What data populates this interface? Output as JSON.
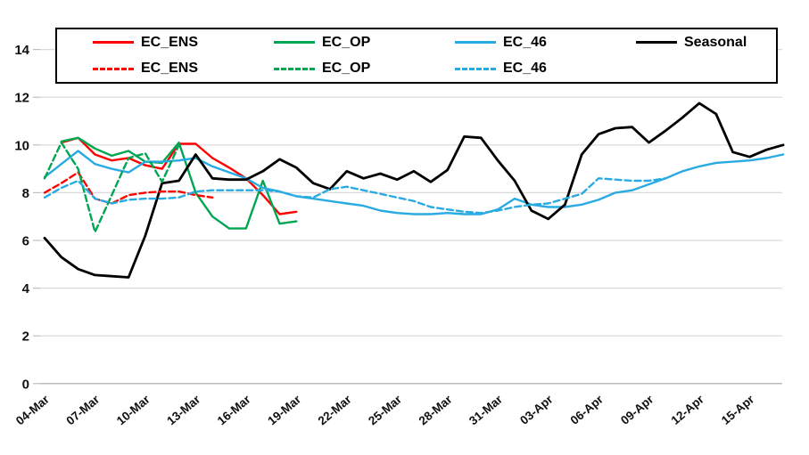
{
  "chart_data": {
    "type": "line",
    "title": "",
    "xlabel": "",
    "ylabel": "",
    "ylim": [
      0,
      14
    ],
    "y_ticks": [
      0,
      2,
      4,
      6,
      8,
      10,
      12,
      14
    ],
    "x_tick_labels": [
      "04-Mar",
      "07-Mar",
      "10-Mar",
      "13-Mar",
      "16-Mar",
      "19-Mar",
      "22-Mar",
      "25-Mar",
      "28-Mar",
      "31-Mar",
      "03-Apr",
      "06-Apr",
      "09-Apr",
      "12-Apr",
      "15-Apr"
    ],
    "x_tick_interval_days": 3,
    "grid": "horizontal-only",
    "legend_position": "top",
    "colors": {
      "red": "#FE0000",
      "green": "#00A651",
      "blue": "#29ABE2",
      "black": "#000000",
      "gridline": "#D9D9D9",
      "axis": "#A6A6A6",
      "tick_stub": "#BFBFBF"
    },
    "series": [
      {
        "name": "EC_ENS",
        "style": "solid",
        "color": "#FE0000",
        "start_day": 1,
        "values": [
          10.1,
          10.3,
          9.6,
          9.35,
          9.45,
          9.15,
          9.0,
          10.05,
          10.05,
          9.45,
          9.05,
          8.6,
          7.9,
          7.1,
          7.2
        ]
      },
      {
        "name": "EC_OP",
        "style": "solid",
        "color": "#00A651",
        "start_day": 1,
        "values": [
          10.15,
          10.3,
          9.85,
          9.55,
          9.75,
          9.3,
          9.25,
          10.1,
          8.0,
          7.0,
          6.5,
          6.5,
          8.5,
          6.7,
          6.8
        ]
      },
      {
        "name": "EC_46",
        "style": "solid",
        "color": "#29ABE2",
        "start_day": 0,
        "values": [
          8.65,
          9.2,
          9.75,
          9.2,
          9.0,
          8.85,
          9.3,
          9.3,
          9.35,
          9.45,
          9.1,
          8.85,
          8.6,
          8.2,
          8.05,
          7.85,
          7.75,
          7.65,
          7.55,
          7.45,
          7.25,
          7.15,
          7.1,
          7.1,
          7.15,
          7.1,
          7.1,
          7.3,
          7.75,
          7.5,
          7.4,
          7.4,
          7.5,
          7.7,
          8.0,
          8.1,
          8.35,
          8.6,
          8.9,
          9.1,
          9.25,
          9.3,
          9.35,
          9.45,
          9.6
        ]
      },
      {
        "name": "Seasonal",
        "style": "solid",
        "color": "#000000",
        "start_day": 0,
        "values": [
          6.1,
          5.3,
          4.8,
          4.55,
          4.5,
          4.45,
          6.2,
          8.4,
          8.5,
          9.6,
          8.6,
          8.55,
          8.55,
          8.9,
          9.4,
          9.05,
          8.4,
          8.15,
          8.9,
          8.6,
          8.8,
          8.55,
          8.9,
          8.45,
          8.95,
          10.35,
          10.3,
          9.35,
          8.5,
          7.25,
          6.9,
          7.5,
          9.6,
          10.45,
          10.7,
          10.75,
          10.1,
          10.6,
          11.15,
          11.75,
          11.3,
          9.7,
          9.5,
          9.8,
          10.0
        ]
      },
      {
        "name": "EC_ENS",
        "style": "dashed",
        "color": "#FE0000",
        "start_day": 0,
        "values": [
          8.0,
          8.4,
          8.85,
          7.75,
          7.55,
          7.9,
          8.0,
          8.05,
          8.05,
          7.9,
          7.8
        ]
      },
      {
        "name": "EC_OP",
        "style": "dashed",
        "color": "#00A651",
        "start_day": 0,
        "values": [
          8.6,
          10.1,
          9.0,
          6.35,
          7.9,
          9.45,
          9.65,
          8.45,
          10.0
        ]
      },
      {
        "name": "EC_46",
        "style": "dashed",
        "color": "#29ABE2",
        "start_day": 0,
        "values": [
          7.8,
          8.2,
          8.5,
          7.75,
          7.55,
          7.7,
          7.75,
          7.75,
          7.8,
          8.05,
          8.1,
          8.1,
          8.1,
          8.1,
          8.05,
          7.85,
          7.8,
          8.15,
          8.25,
          8.1,
          7.95,
          7.8,
          7.65,
          7.4,
          7.3,
          7.2,
          7.15,
          7.25,
          7.4,
          7.5,
          7.55,
          7.75,
          7.95,
          8.6,
          8.55,
          8.5,
          8.5,
          8.6
        ]
      }
    ]
  }
}
